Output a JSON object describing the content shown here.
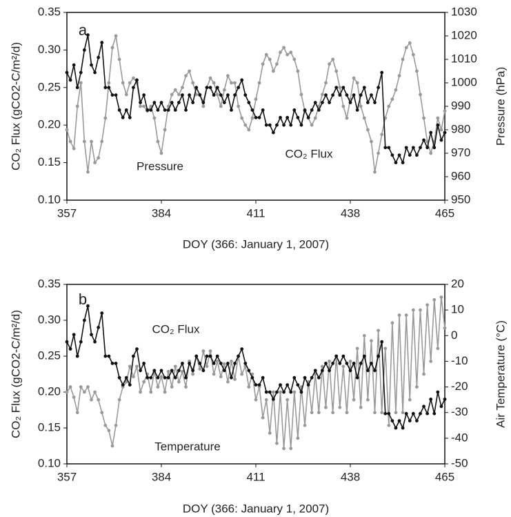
{
  "chart_data": [
    {
      "type": "line",
      "panel_label": "a",
      "xlabel": "DOY (366: January 1, 2007)",
      "ylabel": "CO₂ Flux (gCO2-C/m²/d)",
      "y2label": "Pressure (hPa)",
      "xlim": [
        357,
        465
      ],
      "xticks": [
        357,
        384,
        411,
        438,
        465
      ],
      "ylim": [
        0.1,
        0.35
      ],
      "yticks": [
        {
          "value": 0.1,
          "label": "0.10"
        },
        {
          "value": 0.15,
          "label": "0.15"
        },
        {
          "value": 0.2,
          "label": "0.20"
        },
        {
          "value": 0.25,
          "label": "0.25"
        },
        {
          "value": 0.3,
          "label": "0.30"
        },
        {
          "value": 0.35,
          "label": "0.35"
        }
      ],
      "y2lim": [
        950,
        1030
      ],
      "y2ticks": [
        950,
        960,
        970,
        980,
        990,
        1000,
        1010,
        1020,
        1030
      ],
      "x": [
        357,
        358,
        359,
        360,
        361,
        362,
        363,
        364,
        365,
        366,
        367,
        368,
        369,
        370,
        371,
        372,
        373,
        374,
        375,
        376,
        377,
        378,
        379,
        380,
        381,
        382,
        383,
        384,
        385,
        386,
        387,
        388,
        389,
        390,
        391,
        392,
        393,
        394,
        395,
        396,
        397,
        398,
        399,
        400,
        401,
        402,
        403,
        404,
        405,
        406,
        407,
        408,
        409,
        410,
        411,
        412,
        413,
        414,
        415,
        416,
        417,
        418,
        419,
        420,
        421,
        422,
        423,
        424,
        425,
        426,
        427,
        428,
        429,
        430,
        431,
        432,
        433,
        434,
        435,
        436,
        437,
        438,
        439,
        440,
        441,
        442,
        443,
        444,
        445,
        446,
        447,
        448,
        449,
        450,
        451,
        452,
        453,
        454,
        455,
        456,
        457,
        458,
        459,
        460,
        461,
        462,
        463,
        464,
        465
      ],
      "series": [
        {
          "name": "Pressure",
          "color": "#999999",
          "axis": "y2",
          "values": [
            980,
            975,
            972,
            990,
            1000,
            975,
            962,
            975,
            966,
            968,
            975,
            985,
            1000,
            1015,
            1020,
            1010,
            1000,
            995,
            1000,
            1002,
            1000,
            990,
            990,
            988,
            990,
            985,
            975,
            970,
            980,
            990,
            995,
            997,
            995,
            998,
            1003,
            1005,
            1000,
            995,
            995,
            990,
            998,
            1002,
            1000,
            995,
            990,
            997,
            1003,
            1000,
            1000,
            990,
            985,
            982,
            980,
            985,
            993,
            1000,
            1008,
            1012,
            1010,
            1005,
            1008,
            1013,
            1015,
            1012,
            1013,
            1010,
            1005,
            995,
            988,
            985,
            982,
            985,
            990,
            995,
            1000,
            1008,
            1010,
            1005,
            998,
            990,
            985,
            993,
            1002,
            1000,
            990,
            985,
            980,
            975,
            962,
            970,
            978,
            985,
            990,
            993,
            997,
            1003,
            1010,
            1015,
            1017,
            1012,
            1005,
            995,
            985,
            975,
            970,
            975,
            985,
            980,
            988
          ]
        },
        {
          "name": "CO₂ Flux",
          "color": "#111111",
          "values": [
            0.27,
            0.26,
            0.28,
            0.25,
            0.27,
            0.3,
            0.32,
            0.28,
            0.27,
            0.29,
            0.31,
            0.25,
            0.25,
            0.24,
            0.24,
            0.22,
            0.21,
            0.22,
            0.21,
            0.25,
            0.26,
            0.23,
            0.24,
            0.22,
            0.22,
            0.23,
            0.22,
            0.23,
            0.22,
            0.22,
            0.23,
            0.22,
            0.23,
            0.24,
            0.22,
            0.24,
            0.23,
            0.25,
            0.24,
            0.23,
            0.25,
            0.25,
            0.24,
            0.25,
            0.24,
            0.23,
            0.24,
            0.22,
            0.24,
            0.25,
            0.26,
            0.24,
            0.23,
            0.22,
            0.21,
            0.21,
            0.22,
            0.2,
            0.2,
            0.19,
            0.2,
            0.21,
            0.2,
            0.21,
            0.2,
            0.22,
            0.21,
            0.2,
            0.22,
            0.21,
            0.22,
            0.23,
            0.22,
            0.23,
            0.24,
            0.23,
            0.24,
            0.25,
            0.24,
            0.25,
            0.24,
            0.23,
            0.24,
            0.22,
            0.24,
            0.25,
            0.23,
            0.24,
            0.23,
            0.25,
            0.27,
            0.17,
            0.17,
            0.16,
            0.15,
            0.16,
            0.15,
            0.17,
            0.16,
            0.17,
            0.16,
            0.17,
            0.18,
            0.17,
            0.19,
            0.17,
            0.2,
            0.18,
            0.19
          ]
        }
      ]
    },
    {
      "type": "line",
      "panel_label": "b",
      "xlabel": "DOY (366: January 1, 2007)",
      "ylabel": "CO₂ Flux (gCO2-C/m²/d)",
      "y2label": "Air Temperature (°C)",
      "xlim": [
        357,
        465
      ],
      "xticks": [
        357,
        384,
        411,
        438,
        465
      ],
      "ylim": [
        0.1,
        0.35
      ],
      "yticks": [
        {
          "value": 0.1,
          "label": "0.10"
        },
        {
          "value": 0.15,
          "label": "0.15"
        },
        {
          "value": 0.2,
          "label": "0.20"
        },
        {
          "value": 0.25,
          "label": "0.25"
        },
        {
          "value": 0.3,
          "label": "0.30"
        },
        {
          "value": 0.35,
          "label": "0.35"
        }
      ],
      "y2lim": [
        -50,
        20
      ],
      "y2ticks": [
        -50,
        -40,
        -30,
        -20,
        -10,
        0,
        10,
        20
      ],
      "x": [
        357,
        358,
        359,
        360,
        361,
        362,
        363,
        364,
        365,
        366,
        367,
        368,
        369,
        370,
        371,
        372,
        373,
        374,
        375,
        376,
        377,
        378,
        379,
        380,
        381,
        382,
        383,
        384,
        385,
        386,
        387,
        388,
        389,
        390,
        391,
        392,
        393,
        394,
        395,
        396,
        397,
        398,
        399,
        400,
        401,
        402,
        403,
        404,
        405,
        406,
        407,
        408,
        409,
        410,
        411,
        412,
        413,
        414,
        415,
        416,
        417,
        418,
        419,
        420,
        421,
        422,
        423,
        424,
        425,
        426,
        427,
        428,
        429,
        430,
        431,
        432,
        433,
        434,
        435,
        436,
        437,
        438,
        439,
        440,
        441,
        442,
        443,
        444,
        445,
        446,
        447,
        448,
        449,
        450,
        451,
        452,
        453,
        454,
        455,
        456,
        457,
        458,
        459,
        460,
        461,
        462,
        463,
        464,
        465
      ],
      "series": [
        {
          "name": "Temperature",
          "color": "#999999",
          "axis": "y2",
          "values": [
            -22,
            -20,
            -24,
            -30,
            -20,
            -22,
            -20,
            -25,
            -22,
            -25,
            -30,
            -35,
            -37,
            -43,
            -35,
            -25,
            -20,
            -18,
            -12,
            -16,
            -12,
            -22,
            -18,
            -15,
            -22,
            -14,
            -20,
            -16,
            -22,
            -14,
            -20,
            -12,
            -18,
            -14,
            -20,
            -10,
            -15,
            -8,
            -13,
            -6,
            -12,
            -6,
            -15,
            -10,
            -16,
            -11,
            -18,
            -10,
            -17,
            -8,
            -15,
            -12,
            -20,
            -15,
            -25,
            -20,
            -32,
            -25,
            -38,
            -22,
            -42,
            -22,
            -44,
            -25,
            -44,
            -22,
            -40,
            -20,
            -35,
            -18,
            -30,
            -15,
            -30,
            -12,
            -28,
            -10,
            -30,
            -8,
            -28,
            -12,
            -30,
            -10,
            -25,
            -5,
            -28,
            0,
            -25,
            -2,
            -30,
            2,
            -30,
            -5,
            -35,
            5,
            -30,
            8,
            -30,
            8,
            -25,
            10,
            -20,
            10,
            -15,
            12,
            -10,
            14,
            -5,
            15,
            3
          ]
        },
        {
          "name": "CO₂ Flux",
          "color": "#111111",
          "values": [
            0.27,
            0.26,
            0.28,
            0.25,
            0.27,
            0.3,
            0.32,
            0.28,
            0.27,
            0.29,
            0.31,
            0.25,
            0.25,
            0.24,
            0.24,
            0.22,
            0.21,
            0.22,
            0.21,
            0.25,
            0.26,
            0.23,
            0.24,
            0.22,
            0.22,
            0.23,
            0.22,
            0.23,
            0.22,
            0.22,
            0.23,
            0.22,
            0.23,
            0.24,
            0.22,
            0.24,
            0.23,
            0.25,
            0.24,
            0.23,
            0.25,
            0.25,
            0.24,
            0.25,
            0.24,
            0.23,
            0.24,
            0.22,
            0.24,
            0.25,
            0.26,
            0.24,
            0.23,
            0.22,
            0.21,
            0.21,
            0.22,
            0.2,
            0.2,
            0.19,
            0.2,
            0.21,
            0.2,
            0.21,
            0.2,
            0.22,
            0.21,
            0.2,
            0.22,
            0.21,
            0.22,
            0.23,
            0.22,
            0.23,
            0.24,
            0.23,
            0.24,
            0.25,
            0.24,
            0.25,
            0.24,
            0.23,
            0.24,
            0.22,
            0.24,
            0.25,
            0.23,
            0.24,
            0.23,
            0.25,
            0.27,
            0.17,
            0.17,
            0.16,
            0.15,
            0.16,
            0.15,
            0.17,
            0.16,
            0.17,
            0.16,
            0.17,
            0.18,
            0.17,
            0.19,
            0.17,
            0.2,
            0.18,
            0.19
          ]
        }
      ]
    }
  ]
}
